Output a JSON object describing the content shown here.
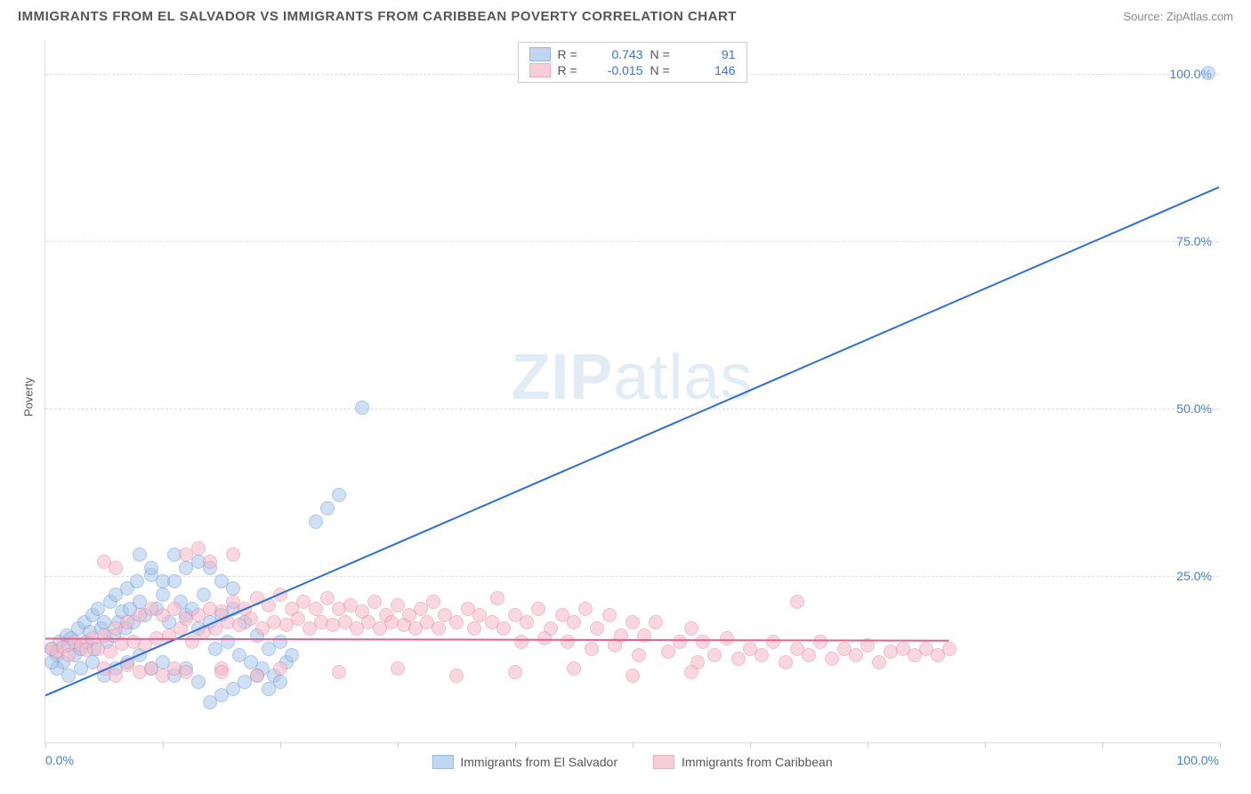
{
  "header": {
    "title": "IMMIGRANTS FROM EL SALVADOR VS IMMIGRANTS FROM CARIBBEAN POVERTY CORRELATION CHART",
    "source": "Source: ZipAtlas.com"
  },
  "chart": {
    "type": "scatter",
    "ylabel": "Poverty",
    "xlim": [
      0,
      100
    ],
    "ylim": [
      0,
      105
    ],
    "yticks": [
      {
        "value": 25,
        "label": "25.0%"
      },
      {
        "value": 50,
        "label": "50.0%"
      },
      {
        "value": 75,
        "label": "75.0%"
      },
      {
        "value": 100,
        "label": "100.0%"
      }
    ],
    "x_tick_positions": [
      0,
      10,
      20,
      30,
      40,
      50,
      60,
      70,
      80,
      90,
      100
    ],
    "xtick_left": "0.0%",
    "xtick_right": "100.0%",
    "background_color": "#ffffff",
    "grid_color": "#dddddd",
    "grid_dash": "4,4",
    "watermark_text_a": "ZIP",
    "watermark_text_b": "atlas",
    "watermark_color": "#d5e4f5",
    "series": [
      {
        "name": "Immigrants from El Salvador",
        "fill_color": "#a9c6ec",
        "stroke_color": "#6b9bd8",
        "fill_opacity": 0.55,
        "marker_radius": 8,
        "stats": {
          "R": "0.743",
          "N": "91"
        },
        "trend": {
          "x1": 0,
          "y1": 7,
          "x2": 100,
          "y2": 83,
          "color": "#2e6fd6",
          "width": 2
        },
        "points": [
          [
            0.5,
            14
          ],
          [
            1,
            13
          ],
          [
            1.2,
            15
          ],
          [
            1.5,
            12
          ],
          [
            1.8,
            16
          ],
          [
            2,
            14.5
          ],
          [
            2.2,
            15.5
          ],
          [
            2.5,
            13
          ],
          [
            2.8,
            17
          ],
          [
            3,
            14
          ],
          [
            3.3,
            18
          ],
          [
            3.5,
            15
          ],
          [
            3.8,
            16.5
          ],
          [
            4,
            19
          ],
          [
            4.2,
            14
          ],
          [
            4.5,
            20
          ],
          [
            4.8,
            17
          ],
          [
            5,
            18
          ],
          [
            5.2,
            15
          ],
          [
            5.5,
            21
          ],
          [
            5.8,
            16
          ],
          [
            6,
            22
          ],
          [
            6.2,
            18
          ],
          [
            6.5,
            19.5
          ],
          [
            6.8,
            17
          ],
          [
            7,
            23
          ],
          [
            7.2,
            20
          ],
          [
            7.5,
            18
          ],
          [
            7.8,
            24
          ],
          [
            8,
            21
          ],
          [
            8.5,
            19
          ],
          [
            9,
            25
          ],
          [
            9.5,
            20
          ],
          [
            10,
            22
          ],
          [
            10.5,
            18
          ],
          [
            11,
            24
          ],
          [
            11.5,
            21
          ],
          [
            12,
            19
          ],
          [
            12.5,
            20
          ],
          [
            13,
            17
          ],
          [
            13.5,
            22
          ],
          [
            14,
            18
          ],
          [
            14.5,
            14
          ],
          [
            15,
            19
          ],
          [
            15.5,
            15
          ],
          [
            16,
            20
          ],
          [
            16.5,
            13
          ],
          [
            17,
            18
          ],
          [
            17.5,
            12
          ],
          [
            18,
            16
          ],
          [
            18.5,
            11
          ],
          [
            19,
            14
          ],
          [
            19.5,
            10
          ],
          [
            20,
            15
          ],
          [
            20.5,
            12
          ],
          [
            21,
            13
          ],
          [
            14,
            6
          ],
          [
            15,
            7
          ],
          [
            16,
            8
          ],
          [
            13,
            9
          ],
          [
            12,
            11
          ],
          [
            11,
            10
          ],
          [
            10,
            12
          ],
          [
            9,
            11
          ],
          [
            8,
            13
          ],
          [
            7,
            12
          ],
          [
            6,
            11
          ],
          [
            5,
            10
          ],
          [
            4,
            12
          ],
          [
            3,
            11
          ],
          [
            2,
            10
          ],
          [
            1,
            11
          ],
          [
            0.5,
            12
          ],
          [
            17,
            9
          ],
          [
            18,
            10
          ],
          [
            19,
            8
          ],
          [
            20,
            9
          ],
          [
            14,
            26
          ],
          [
            15,
            24
          ],
          [
            13,
            27
          ],
          [
            23,
            33
          ],
          [
            24,
            35
          ],
          [
            25,
            37
          ],
          [
            27,
            50
          ],
          [
            8,
            28
          ],
          [
            9,
            26
          ],
          [
            10,
            24
          ],
          [
            12,
            26
          ],
          [
            11,
            28
          ],
          [
            99,
            100
          ],
          [
            16,
            23
          ]
        ]
      },
      {
        "name": "Immigrants from Caribbean",
        "fill_color": "#f5b8c9",
        "stroke_color": "#e68aa5",
        "fill_opacity": 0.55,
        "marker_radius": 8,
        "stats": {
          "R": "-0.015",
          "N": "146"
        },
        "trend": {
          "x1": 0,
          "y1": 15.5,
          "x2": 77,
          "y2": 15.2,
          "color": "#e85f8f",
          "width": 2
        },
        "points": [
          [
            0.5,
            14
          ],
          [
            1,
            13.5
          ],
          [
            1.5,
            14.2
          ],
          [
            2,
            13
          ],
          [
            2.5,
            15
          ],
          [
            3,
            14.5
          ],
          [
            3.5,
            13.8
          ],
          [
            4,
            15.5
          ],
          [
            4.5,
            14
          ],
          [
            5,
            16
          ],
          [
            5.5,
            13.5
          ],
          [
            6,
            17
          ],
          [
            6.5,
            14.8
          ],
          [
            7,
            18
          ],
          [
            7.5,
            15
          ],
          [
            8,
            19
          ],
          [
            8.5,
            14.5
          ],
          [
            9,
            20
          ],
          [
            9.5,
            15.5
          ],
          [
            10,
            19
          ],
          [
            10.5,
            16
          ],
          [
            11,
            20
          ],
          [
            11.5,
            17
          ],
          [
            12,
            18.5
          ],
          [
            12.5,
            15
          ],
          [
            13,
            19
          ],
          [
            13.5,
            16.5
          ],
          [
            14,
            20
          ],
          [
            14.5,
            17
          ],
          [
            15,
            19.5
          ],
          [
            15.5,
            18
          ],
          [
            16,
            21
          ],
          [
            16.5,
            17.5
          ],
          [
            17,
            20
          ],
          [
            17.5,
            18.5
          ],
          [
            18,
            21.5
          ],
          [
            18.5,
            17
          ],
          [
            19,
            20.5
          ],
          [
            19.5,
            18
          ],
          [
            20,
            22
          ],
          [
            20.5,
            17.5
          ],
          [
            21,
            20
          ],
          [
            21.5,
            18.5
          ],
          [
            22,
            21
          ],
          [
            22.5,
            17
          ],
          [
            23,
            20
          ],
          [
            23.5,
            18
          ],
          [
            24,
            21.5
          ],
          [
            24.5,
            17.5
          ],
          [
            25,
            20
          ],
          [
            25.5,
            18
          ],
          [
            26,
            20.5
          ],
          [
            26.5,
            17
          ],
          [
            27,
            19.5
          ],
          [
            27.5,
            18
          ],
          [
            28,
            21
          ],
          [
            28.5,
            17
          ],
          [
            29,
            19
          ],
          [
            29.5,
            18
          ],
          [
            30,
            20.5
          ],
          [
            30.5,
            17.5
          ],
          [
            31,
            19
          ],
          [
            31.5,
            17
          ],
          [
            32,
            20
          ],
          [
            32.5,
            18
          ],
          [
            33,
            21
          ],
          [
            33.5,
            17
          ],
          [
            34,
            19
          ],
          [
            35,
            18
          ],
          [
            36,
            20
          ],
          [
            36.5,
            17
          ],
          [
            37,
            19
          ],
          [
            38,
            18
          ],
          [
            38.5,
            21.5
          ],
          [
            39,
            17
          ],
          [
            40,
            19
          ],
          [
            40.5,
            15
          ],
          [
            41,
            18
          ],
          [
            42,
            20
          ],
          [
            42.5,
            15.5
          ],
          [
            43,
            17
          ],
          [
            44,
            19
          ],
          [
            44.5,
            15
          ],
          [
            45,
            18
          ],
          [
            46,
            20
          ],
          [
            46.5,
            14
          ],
          [
            47,
            17
          ],
          [
            48,
            19
          ],
          [
            48.5,
            14.5
          ],
          [
            49,
            16
          ],
          [
            50,
            18
          ],
          [
            50.5,
            13
          ],
          [
            51,
            16
          ],
          [
            52,
            18
          ],
          [
            53,
            13.5
          ],
          [
            54,
            15
          ],
          [
            55,
            17
          ],
          [
            55.5,
            12
          ],
          [
            56,
            15
          ],
          [
            57,
            13
          ],
          [
            58,
            15.5
          ],
          [
            59,
            12.5
          ],
          [
            60,
            14
          ],
          [
            61,
            13
          ],
          [
            62,
            15
          ],
          [
            63,
            12
          ],
          [
            64,
            14
          ],
          [
            65,
            13
          ],
          [
            66,
            15
          ],
          [
            67,
            12.5
          ],
          [
            68,
            14
          ],
          [
            69,
            13
          ],
          [
            70,
            14.5
          ],
          [
            71,
            12
          ],
          [
            72,
            13.5
          ],
          [
            73,
            14
          ],
          [
            74,
            13
          ],
          [
            75,
            14
          ],
          [
            76,
            13
          ],
          [
            77,
            14
          ],
          [
            5,
            27
          ],
          [
            6,
            26
          ],
          [
            12,
            28
          ],
          [
            14,
            27
          ],
          [
            16,
            28
          ],
          [
            13,
            29
          ],
          [
            5,
            11
          ],
          [
            6,
            10
          ],
          [
            7,
            11.5
          ],
          [
            8,
            10.5
          ],
          [
            9,
            11
          ],
          [
            10,
            10
          ],
          [
            11,
            11
          ],
          [
            12,
            10.5
          ],
          [
            15,
            11
          ],
          [
            18,
            10
          ],
          [
            20,
            11
          ],
          [
            25,
            10.5
          ],
          [
            30,
            11
          ],
          [
            35,
            10
          ],
          [
            40,
            10.5
          ],
          [
            45,
            11
          ],
          [
            50,
            10
          ],
          [
            55,
            10.5
          ],
          [
            15,
            10.5
          ],
          [
            64,
            21
          ]
        ]
      }
    ],
    "legend_stats": {
      "r_label": "R =",
      "n_label": "N ="
    },
    "bottom_legend": true
  }
}
